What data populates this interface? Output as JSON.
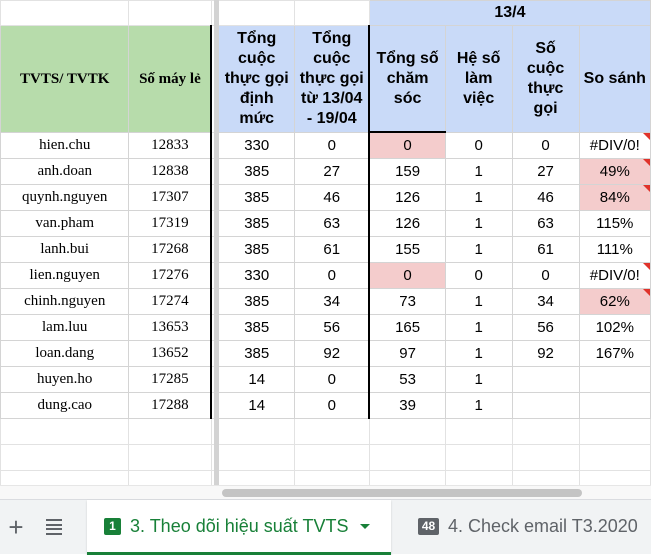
{
  "group_header": "13/4",
  "headers": {
    "tvts": "TVTS/ TVTK",
    "ext": "Số máy lẻ",
    "quota": "Tổng cuộc thực gọi định mức",
    "calls_range": "Tổng cuộc thực gọi từ 13/04 - 19/04",
    "care_total": "Tổng số chăm sóc",
    "coef": "Hệ số làm việc",
    "calls": "Số cuộc thực gọi",
    "compare": "So sánh"
  },
  "rows": [
    {
      "name": "hien.chu",
      "ext": "12833",
      "quota": "330",
      "range": "0",
      "care": "0",
      "coef": "0",
      "calls": "0",
      "compare": "#DIV/0!"
    },
    {
      "name": "anh.doan",
      "ext": "12838",
      "quota": "385",
      "range": "27",
      "care": "159",
      "coef": "1",
      "calls": "27",
      "compare": "49%"
    },
    {
      "name": "quynh.nguyen",
      "ext": "17307",
      "quota": "385",
      "range": "46",
      "care": "126",
      "coef": "1",
      "calls": "46",
      "compare": "84%"
    },
    {
      "name": "van.pham",
      "ext": "17319",
      "quota": "385",
      "range": "63",
      "care": "126",
      "coef": "1",
      "calls": "63",
      "compare": "115%"
    },
    {
      "name": "lanh.bui",
      "ext": "17268",
      "quota": "385",
      "range": "61",
      "care": "155",
      "coef": "1",
      "calls": "61",
      "compare": "111%"
    },
    {
      "name": "lien.nguyen",
      "ext": "17276",
      "quota": "330",
      "range": "0",
      "care": "0",
      "coef": "0",
      "calls": "0",
      "compare": "#DIV/0!"
    },
    {
      "name": "chinh.nguyen",
      "ext": "17274",
      "quota": "385",
      "range": "34",
      "care": "73",
      "coef": "1",
      "calls": "34",
      "compare": "62%"
    },
    {
      "name": "lam.luu",
      "ext": "13653",
      "quota": "385",
      "range": "56",
      "care": "165",
      "coef": "1",
      "calls": "56",
      "compare": "102%"
    },
    {
      "name": "loan.dang",
      "ext": "13652",
      "quota": "385",
      "range": "92",
      "care": "97",
      "coef": "1",
      "calls": "92",
      "compare": "167%"
    },
    {
      "name": "huyen.ho",
      "ext": "17285",
      "quota": "14",
      "range": "0",
      "care": "53",
      "coef": "1",
      "calls": "",
      "compare": ""
    },
    {
      "name": "dung.cao",
      "ext": "17288",
      "quota": "14",
      "range": "0",
      "care": "39",
      "coef": "1",
      "calls": "",
      "compare": ""
    }
  ],
  "tabbar": {
    "add_symbol": "+",
    "tabs": [
      {
        "badge": "1",
        "label": "3. Theo dõi hiệu suất TVTS"
      },
      {
        "badge": "48",
        "label": "4. Check email T3.2020"
      }
    ]
  },
  "colors": {
    "header_green": "#b7dcab",
    "header_blue": "#c9daf8",
    "highlight_pink": "#f4cccc",
    "active_tab": "#188038"
  }
}
